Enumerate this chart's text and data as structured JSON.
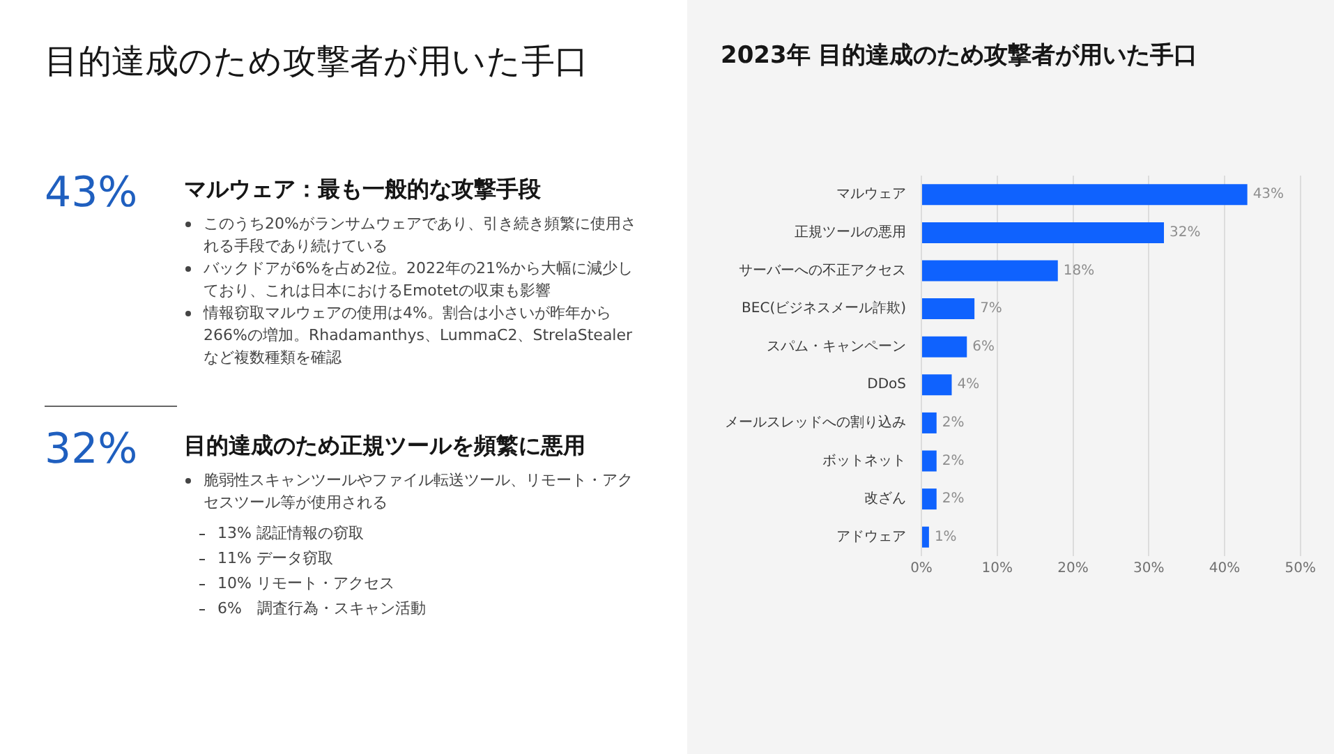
{
  "chart_data": [
    {
      "type": "other",
      "title": "目的達成のため攻撃者が用いた手口",
      "annotations": [
        "43%",
        "マルウェア：最も一般的な攻撃手段",
        "このうち20%がランサムウェアであり、引き続き頻繁に使用される手段であり続けている",
        "バックドアが6%を占め2位。2022年の21%から大幅に減少しており、これは日本におけるEmotetの収束も影響",
        "情報窃取マルウェアの使用は4%。割合は小さいが昨年から266%の増加。Rhadamanthys、LummaC2、StrelaStealerなど複数種類を確認",
        "32%",
        "目的達成のため正規ツールを頻繁に悪用",
        "脆弱性スキャンツールやファイル転送ツール、リモート・アクセスツール等が使用される",
        "13% 認証情報の窃取",
        "11% データ窃取",
        "10% リモート・アクセス",
        "6%　調査行為・スキャン活動"
      ]
    },
    {
      "type": "bar",
      "orientation": "horizontal",
      "title": "2023年 目的達成のため攻撃者が用いた手口",
      "categories": [
        "マルウェア",
        "正規ツールの悪用",
        "サーバーへの不正アクセス",
        "BEC(ビジネスメール詐欺)",
        "スパム・キャンペーン",
        "DDoS",
        "メールスレッドへの割り込み",
        "ボットネット",
        "改ざん",
        "アドウェア"
      ],
      "values": [
        43,
        32,
        18,
        7,
        6,
        4,
        2,
        2,
        2,
        1
      ],
      "value_labels": [
        "43%",
        "32%",
        "18%",
        "7%",
        "6%",
        "4%",
        "2%",
        "2%",
        "2%",
        "1%"
      ],
      "color": "#0f62fe",
      "xlim": [
        0,
        50
      ],
      "xticks": [
        {
          "value": 0,
          "label": "0%"
        },
        {
          "value": 10,
          "label": "10%"
        },
        {
          "value": 20,
          "label": "20%"
        },
        {
          "value": 30,
          "label": "30%"
        },
        {
          "value": 40,
          "label": "40%"
        },
        {
          "value": 50,
          "label": "50%"
        }
      ],
      "grid": "x"
    }
  ]
}
